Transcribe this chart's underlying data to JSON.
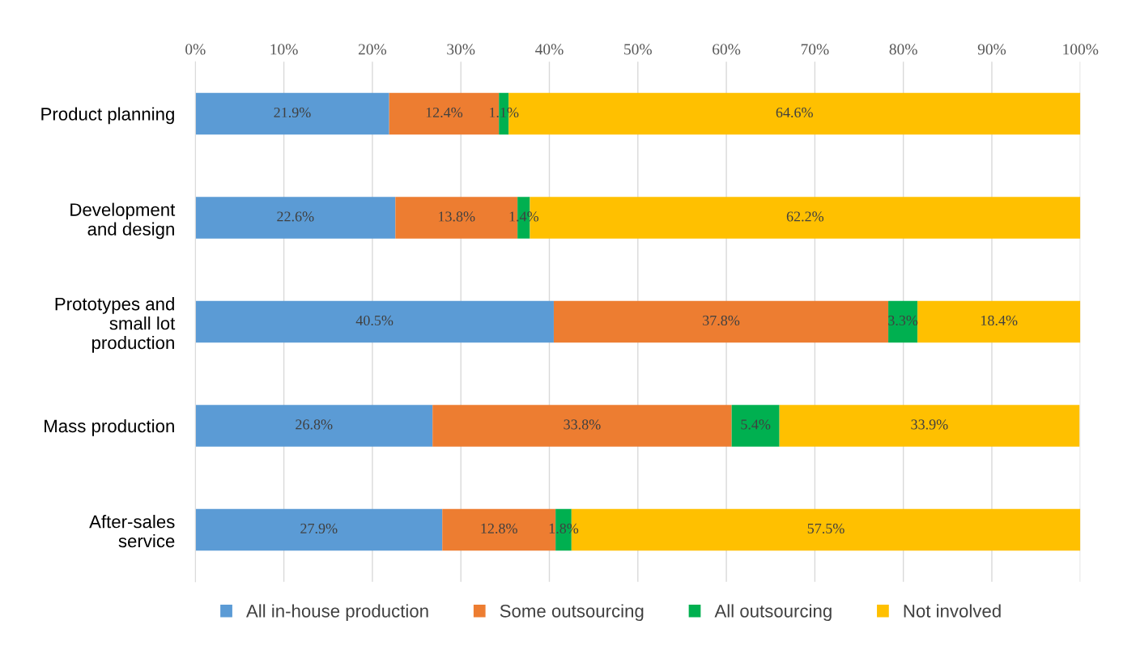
{
  "chart_data": {
    "type": "bar",
    "orientation": "horizontal",
    "stacked": true,
    "categories": [
      "Product planning",
      "Development\nand design",
      "Prototypes and\nsmall lot\nproduction",
      "Mass production",
      "After-sales\nservice"
    ],
    "series": [
      {
        "name": "All in-house production",
        "color": "#5b9bd5",
        "values": [
          21.9,
          22.6,
          40.5,
          26.8,
          27.9
        ],
        "value_labels": [
          "21.9%",
          "22.6%",
          "40.5%",
          "26.8%",
          "27.9%"
        ]
      },
      {
        "name": "Some outsourcing",
        "color": "#ed7d31",
        "values": [
          12.4,
          13.8,
          37.8,
          33.8,
          12.8
        ],
        "value_labels": [
          "12.4%",
          "13.8%",
          "37.8%",
          "33.8%",
          "12.8%"
        ]
      },
      {
        "name": "All outsourcing",
        "color": "#00b050",
        "values": [
          1.1,
          1.4,
          3.3,
          5.4,
          1.8
        ],
        "value_labels": [
          "1.1%",
          "1.4%",
          "3.3%",
          "5.4%",
          "1.8%"
        ]
      },
      {
        "name": "Not involved",
        "color": "#ffc000",
        "values": [
          64.6,
          62.2,
          18.4,
          33.9,
          57.5
        ],
        "value_labels": [
          "64.6%",
          "62.2%",
          "18.4%",
          "33.9%",
          "57.5%"
        ]
      }
    ],
    "xlim": [
      0,
      100
    ],
    "xticks": [
      {
        "value": 0,
        "label": "0%"
      },
      {
        "value": 10,
        "label": "10%"
      },
      {
        "value": 20,
        "label": "20%"
      },
      {
        "value": 30,
        "label": "30%"
      },
      {
        "value": 40,
        "label": "40%"
      },
      {
        "value": 50,
        "label": "50%"
      },
      {
        "value": 60,
        "label": "60%"
      },
      {
        "value": 70,
        "label": "70%"
      },
      {
        "value": 80,
        "label": "80%"
      },
      {
        "value": 90,
        "label": "90%"
      },
      {
        "value": 100,
        "label": "100%"
      }
    ],
    "grid": "x",
    "legend": "bottom"
  }
}
